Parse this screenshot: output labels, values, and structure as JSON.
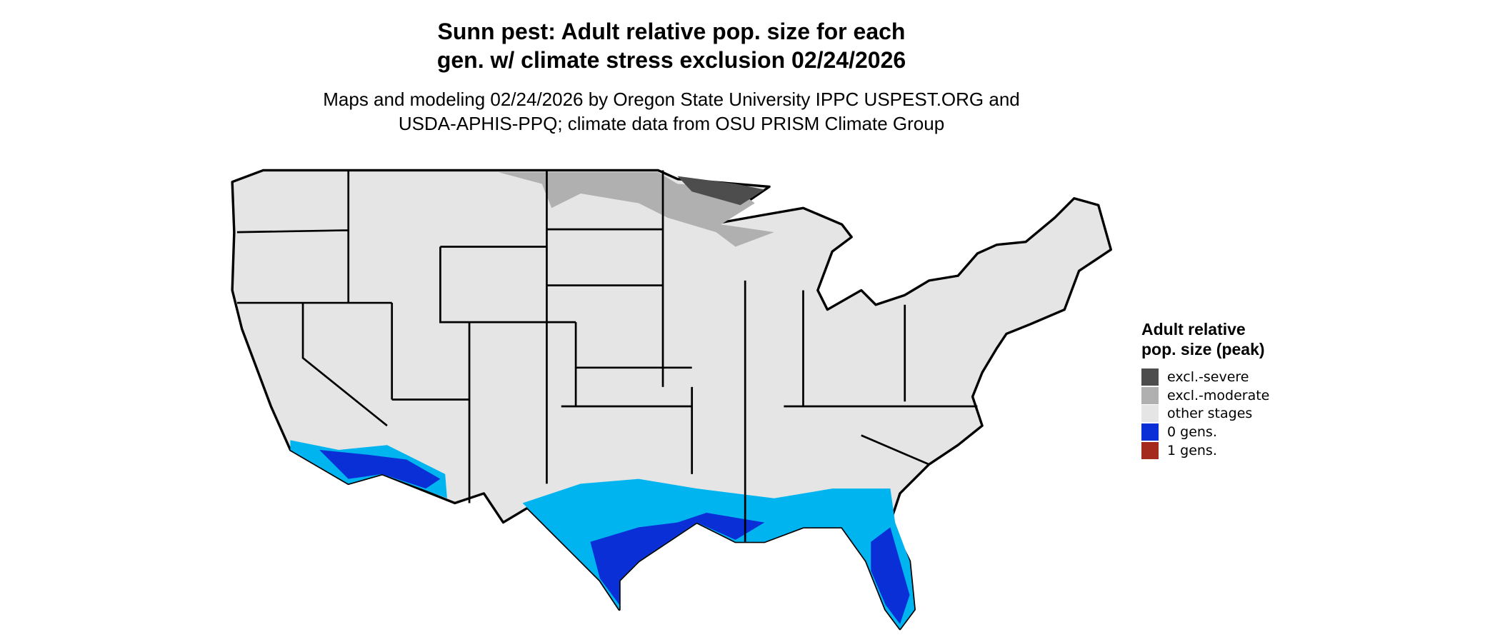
{
  "header": {
    "title": "Sunn pest: Adult relative pop. size for each gen. w/ climate stress exclusion 02/24/2026",
    "subtitle": "Maps and modeling 02/24/2026 by Oregon State University IPPC USPEST.ORG and USDA-APHIS-PPQ; climate data from OSU PRISM Climate Group"
  },
  "legend": {
    "title": "Adult relative pop. size (peak)",
    "items": [
      {
        "label": "excl.-severe",
        "color": "#4d4d4d"
      },
      {
        "label": "excl.-moderate",
        "color": "#b0b0b0"
      },
      {
        "label": "other stages",
        "color": "#e5e5e5"
      },
      {
        "label": "0 gens.",
        "color": "#0a2fd6"
      },
      {
        "label": "1 gens.",
        "color": "#a52a1e"
      }
    ]
  }
}
